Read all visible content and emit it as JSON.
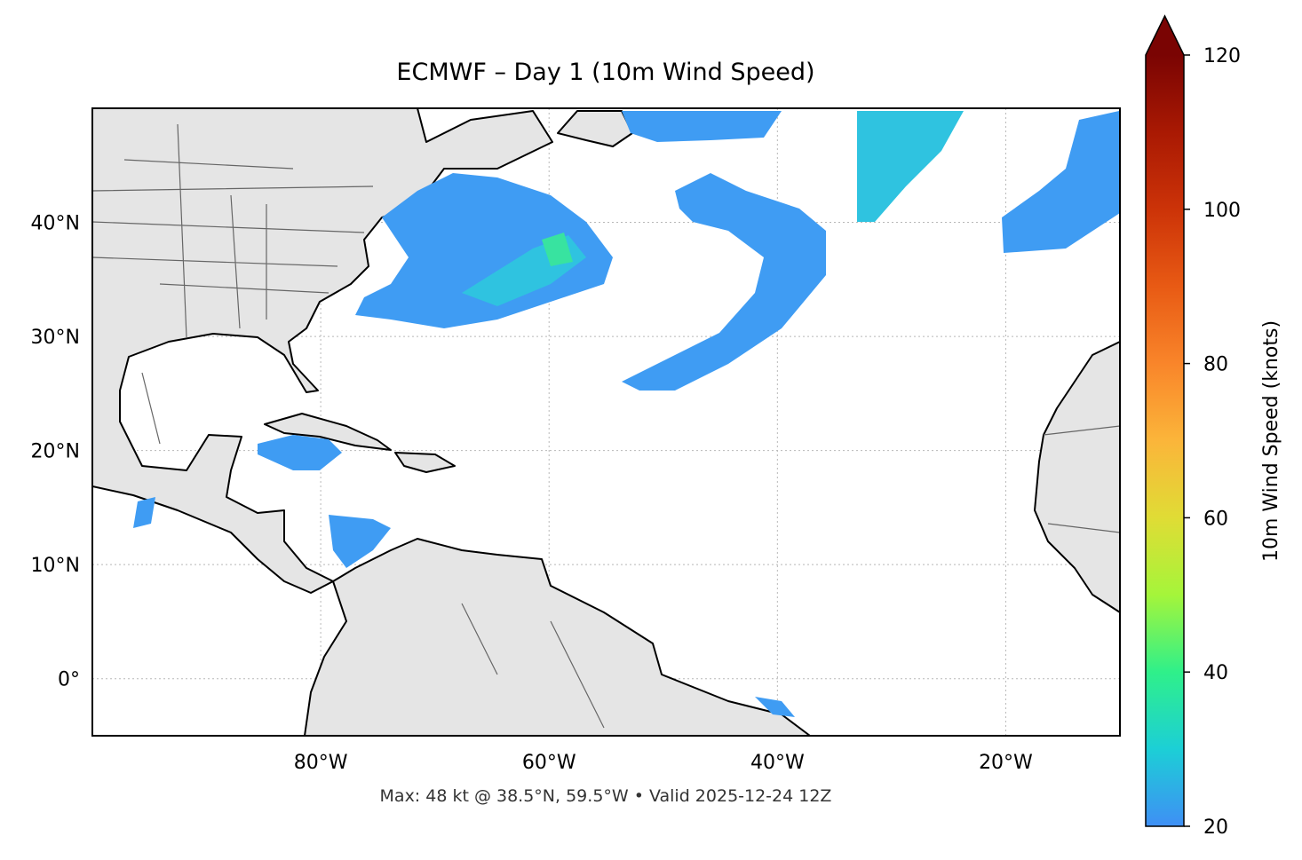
{
  "title": "ECMWF – Day 1 (10m Wind Speed)",
  "map": {
    "xlim": [
      -100,
      -10
    ],
    "ylim": [
      -5,
      50
    ],
    "xticks": [
      {
        "value": -80,
        "label": "80°W"
      },
      {
        "value": -60,
        "label": "60°W"
      },
      {
        "value": -40,
        "label": "40°W"
      },
      {
        "value": -20,
        "label": "20°W"
      }
    ],
    "yticks": [
      {
        "value": 0,
        "label": "0°"
      },
      {
        "value": 10,
        "label": "10°N"
      },
      {
        "value": 20,
        "label": "20°N"
      },
      {
        "value": 30,
        "label": "30°N"
      },
      {
        "value": 40,
        "label": "40°N"
      }
    ]
  },
  "colorbar": {
    "label": "10m Wind Speed (knots)",
    "lim": [
      20,
      120
    ],
    "ticks": [
      20,
      40,
      60,
      80,
      100,
      120
    ]
  },
  "footer": "Max: 48 kt @ 38.5°N, 59.5°W • Valid 2025-12-24 12Z"
}
